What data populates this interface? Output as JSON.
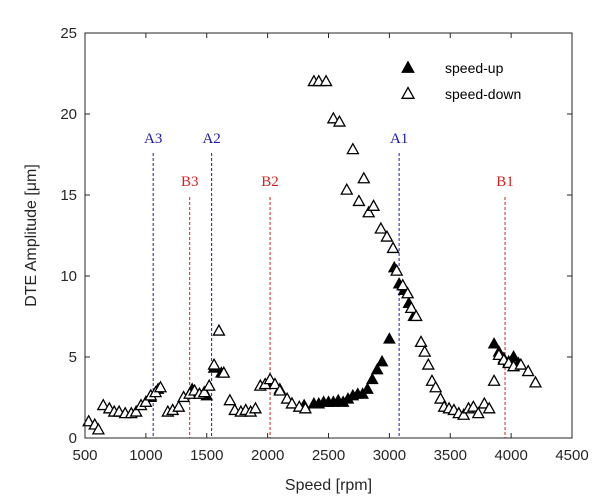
{
  "chart_data": {
    "type": "scatter",
    "xlabel": "Speed [rpm]",
    "ylabel": "DTE Amplitude [",
    "ylabel_unit": "μm",
    "ylabel_close": "]",
    "xlim": [
      500,
      4500
    ],
    "ylim": [
      0,
      25
    ],
    "x_ticks": [
      500,
      1000,
      1500,
      2000,
      2500,
      3000,
      3500,
      4000,
      4500
    ],
    "y_ticks": [
      0,
      5,
      10,
      15,
      20,
      25
    ],
    "grid": false,
    "legend_position": "top-right",
    "series": [
      {
        "name": "speed-up",
        "marker": "filled-triangle",
        "color": "#000000",
        "points": [
          [
            1040,
            2.5
          ],
          [
            1100,
            3.0
          ],
          [
            1380,
            3.0
          ],
          [
            1440,
            2.7
          ],
          [
            1500,
            2.6
          ],
          [
            1560,
            4.3
          ],
          [
            1620,
            4.0
          ],
          [
            2030,
            3.4
          ],
          [
            2100,
            3.0
          ],
          [
            2200,
            2.1
          ],
          [
            2300,
            2.0
          ],
          [
            2380,
            2.1
          ],
          [
            2420,
            2.1
          ],
          [
            2460,
            2.2
          ],
          [
            2500,
            2.2
          ],
          [
            2540,
            2.2
          ],
          [
            2580,
            2.3
          ],
          [
            2620,
            2.2
          ],
          [
            2660,
            2.4
          ],
          [
            2700,
            2.6
          ],
          [
            2740,
            2.7
          ],
          [
            2780,
            2.7
          ],
          [
            2820,
            3.0
          ],
          [
            2860,
            3.6
          ],
          [
            2900,
            4.2
          ],
          [
            2940,
            4.7
          ],
          [
            3000,
            6.1
          ],
          [
            3040,
            10.5
          ],
          [
            3080,
            9.5
          ],
          [
            3120,
            9.1
          ],
          [
            3160,
            8.3
          ],
          [
            3200,
            7.5
          ],
          [
            3860,
            5.8
          ],
          [
            3900,
            5.3
          ],
          [
            3940,
            4.9
          ],
          [
            3980,
            4.7
          ],
          [
            4020,
            5.0
          ],
          [
            4060,
            4.6
          ]
        ]
      },
      {
        "name": "speed-down",
        "marker": "open-triangle",
        "color": "#000000",
        "points": [
          [
            530,
            1.0
          ],
          [
            580,
            0.8
          ],
          [
            610,
            0.5
          ],
          [
            650,
            2.0
          ],
          [
            700,
            1.8
          ],
          [
            740,
            1.6
          ],
          [
            780,
            1.6
          ],
          [
            830,
            1.5
          ],
          [
            880,
            1.5
          ],
          [
            920,
            1.6
          ],
          [
            960,
            2.0
          ],
          [
            1000,
            2.2
          ],
          [
            1040,
            2.6
          ],
          [
            1080,
            2.8
          ],
          [
            1120,
            3.1
          ],
          [
            1180,
            1.6
          ],
          [
            1220,
            1.7
          ],
          [
            1270,
            1.9
          ],
          [
            1310,
            2.5
          ],
          [
            1360,
            2.7
          ],
          [
            1400,
            2.9
          ],
          [
            1440,
            2.7
          ],
          [
            1480,
            2.8
          ],
          [
            1520,
            3.2
          ],
          [
            1560,
            4.5
          ],
          [
            1600,
            6.6
          ],
          [
            1640,
            4.0
          ],
          [
            1690,
            2.3
          ],
          [
            1730,
            1.7
          ],
          [
            1780,
            1.6
          ],
          [
            1820,
            1.7
          ],
          [
            1860,
            1.6
          ],
          [
            1900,
            1.8
          ],
          [
            1940,
            3.2
          ],
          [
            1980,
            3.3
          ],
          [
            2020,
            3.6
          ],
          [
            2060,
            3.3
          ],
          [
            2100,
            2.9
          ],
          [
            2160,
            2.4
          ],
          [
            2200,
            2.1
          ],
          [
            2260,
            1.9
          ],
          [
            2310,
            1.8
          ],
          [
            2380,
            22.0
          ],
          [
            2420,
            22.0
          ],
          [
            2480,
            22.0
          ],
          [
            2540,
            19.7
          ],
          [
            2590,
            19.5
          ],
          [
            2650,
            15.3
          ],
          [
            2700,
            17.8
          ],
          [
            2750,
            14.6
          ],
          [
            2790,
            16.0
          ],
          [
            2830,
            13.9
          ],
          [
            2870,
            14.3
          ],
          [
            2930,
            12.9
          ],
          [
            2980,
            12.4
          ],
          [
            3030,
            11.7
          ],
          [
            3060,
            10.3
          ],
          [
            3110,
            9.4
          ],
          [
            3150,
            8.9
          ],
          [
            3180,
            8.0
          ],
          [
            3220,
            7.5
          ],
          [
            3260,
            5.9
          ],
          [
            3290,
            5.3
          ],
          [
            3320,
            4.5
          ],
          [
            3350,
            3.5
          ],
          [
            3380,
            3.1
          ],
          [
            3420,
            2.4
          ],
          [
            3450,
            1.9
          ],
          [
            3490,
            1.8
          ],
          [
            3530,
            1.7
          ],
          [
            3570,
            1.5
          ],
          [
            3610,
            1.4
          ],
          [
            3650,
            1.8
          ],
          [
            3690,
            1.9
          ],
          [
            3730,
            1.5
          ],
          [
            3780,
            2.1
          ],
          [
            3820,
            1.8
          ],
          [
            3860,
            3.5
          ],
          [
            3900,
            5.1
          ],
          [
            3940,
            4.8
          ],
          [
            3980,
            4.6
          ],
          [
            4020,
            4.4
          ],
          [
            4080,
            4.5
          ],
          [
            4140,
            4.1
          ],
          [
            4200,
            3.4
          ]
        ]
      }
    ],
    "vertical_lines": [
      {
        "label": "A3",
        "x": 1060,
        "color": "#1a1aaa"
      },
      {
        "label": "B3",
        "x": 1360,
        "color": "#cc2222"
      },
      {
        "label": "A2",
        "x": 1540,
        "color": "#1a1aaa"
      },
      {
        "label": "B2",
        "x": 2020,
        "color": "#cc2222"
      },
      {
        "label": "A1",
        "x": 3080,
        "color": "#1a1aaa"
      },
      {
        "label": "B1",
        "x": 3950,
        "color": "#cc2222"
      }
    ]
  }
}
